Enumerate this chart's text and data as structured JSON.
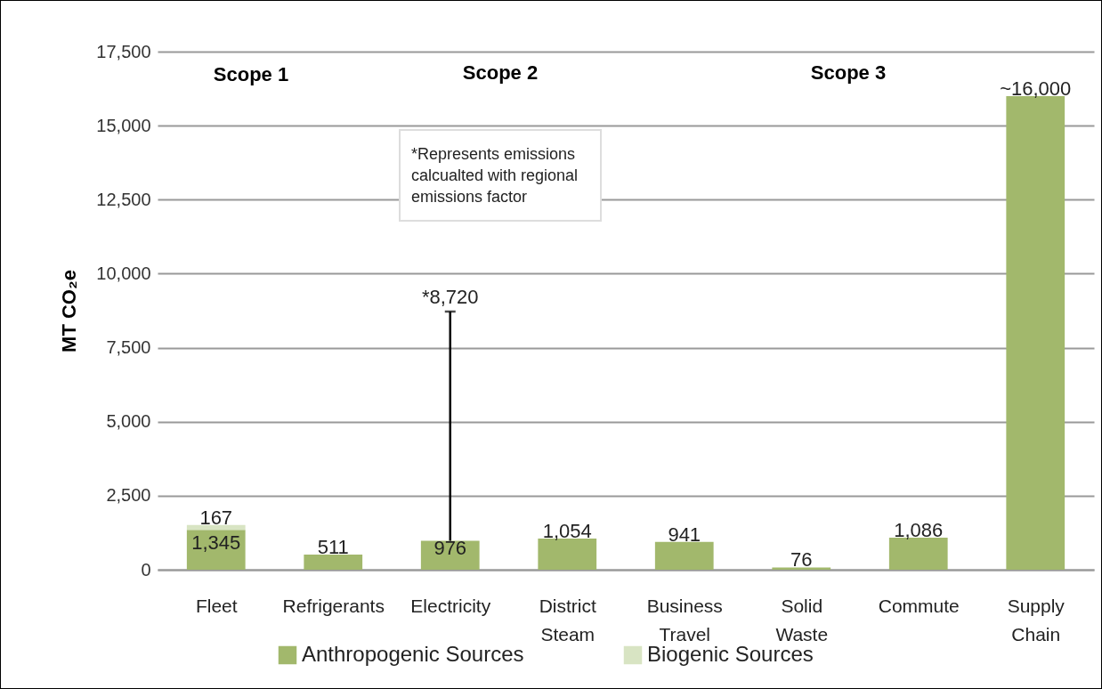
{
  "chart_data": {
    "type": "bar",
    "stacked": true,
    "ylabel": "MT CO₂e",
    "categories": [
      "Fleet",
      "Refrigerants",
      "Electricity",
      "District Steam",
      "Business Travel",
      "Solid Waste",
      "Commute",
      "Supply Chain"
    ],
    "series": [
      {
        "name": "Anthropogenic Sources",
        "color": "#a2b86c",
        "values": [
          1345,
          511,
          976,
          1054,
          941,
          76,
          1086,
          16000
        ],
        "value_labels": [
          "1,345",
          "511",
          "976",
          "1,054",
          "941",
          "76",
          "1,086",
          "~16,000"
        ],
        "errors": [
          null,
          null,
          [
            976,
            8720
          ],
          null,
          null,
          null,
          null,
          null
        ]
      },
      {
        "name": "Biogenic Sources",
        "color": "#d8e4c3",
        "values": [
          167,
          null,
          null,
          null,
          null,
          null,
          null,
          null
        ],
        "value_labels": [
          "167",
          null,
          null,
          null,
          null,
          null,
          null,
          null
        ]
      }
    ],
    "ylim": [
      0,
      17500
    ],
    "yticks": [
      0,
      {
        "value": 2500,
        "label": "2,500"
      },
      {
        "value": 5000,
        "label": "5,000"
      },
      {
        "value": 7500,
        "label": "7,500"
      },
      {
        "value": 10000,
        "label": "10,000"
      },
      {
        "value": 12500,
        "label": "12,500"
      },
      {
        "value": 15000,
        "label": "15,000"
      },
      {
        "value": 17500,
        "label": "17,500"
      }
    ],
    "grid": "y",
    "legend": "bottom",
    "annotations": [
      {
        "text": "*8,720",
        "x": "Electricity",
        "y": 8720
      },
      "Scope 1",
      "Scope 2",
      "Scope 3",
      "*Represents emissions calcualted with regional emissions factor"
    ]
  }
}
